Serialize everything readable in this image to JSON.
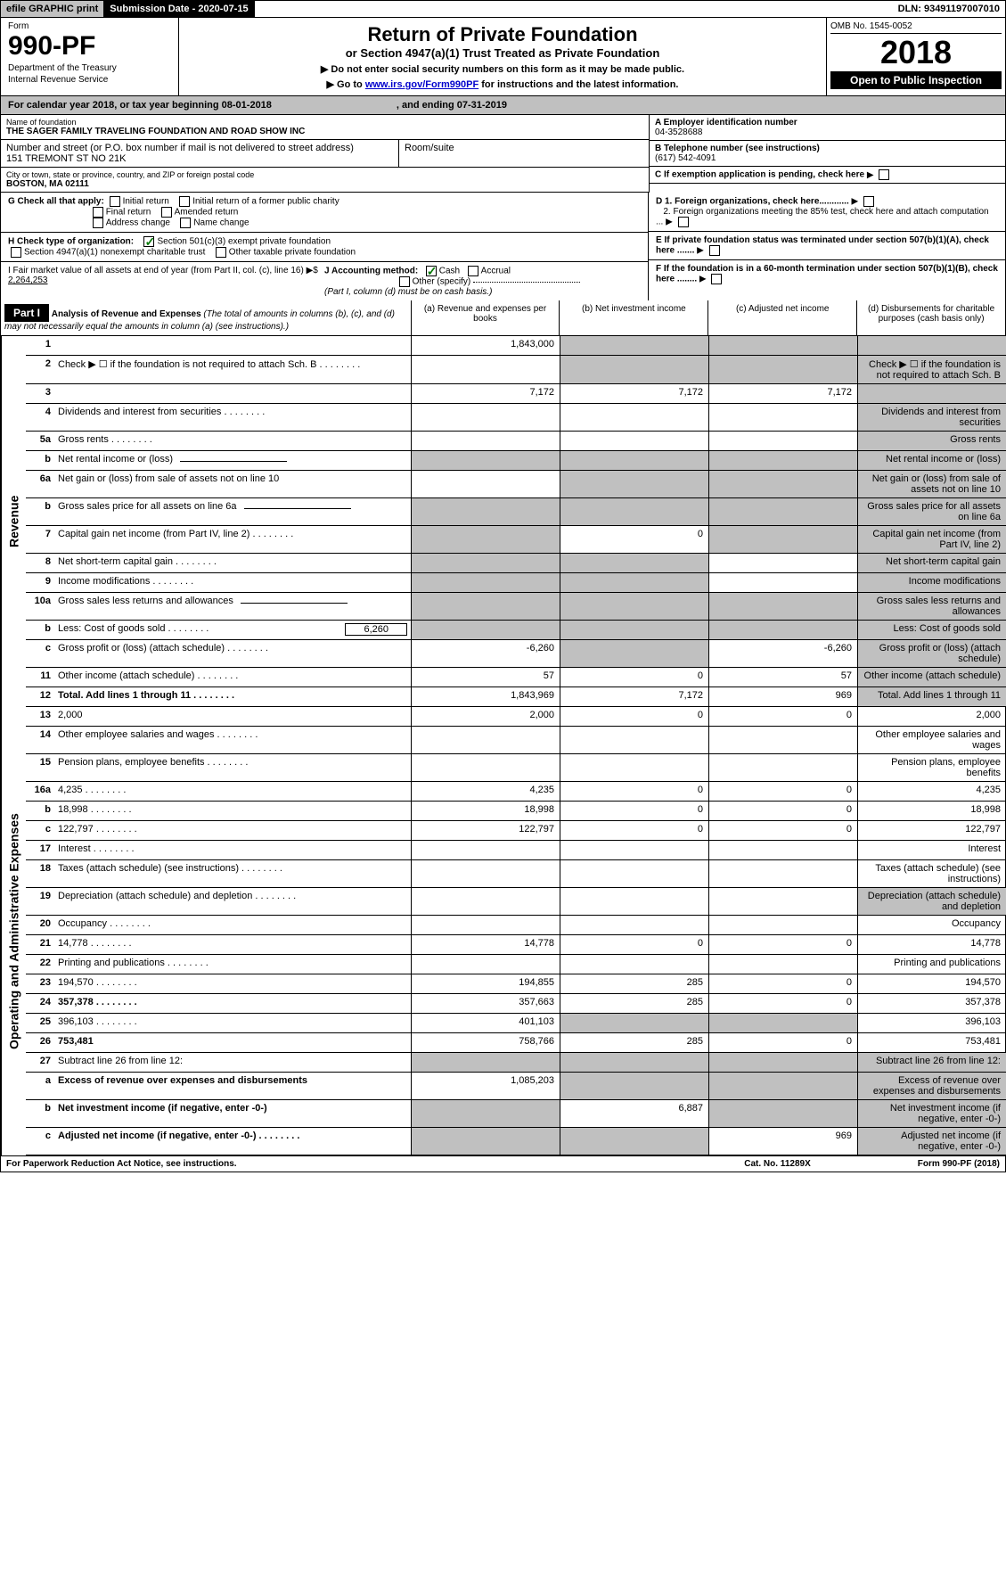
{
  "topbar": {
    "efile": "efile GRAPHIC print",
    "subdate_label": "Submission Date - ",
    "subdate": "2020-07-15",
    "dln_label": "DLN: ",
    "dln": "93491197007010"
  },
  "header": {
    "form_label": "Form",
    "form_num": "990-PF",
    "dept1": "Department of the Treasury",
    "dept2": "Internal Revenue Service",
    "title": "Return of Private Foundation",
    "sub1": "or Section 4947(a)(1) Trust Treated as Private Foundation",
    "sub2a": "▶ Do not enter social security numbers on this form as it may be made public.",
    "sub2b": "▶ Go to ",
    "link": "www.irs.gov/Form990PF",
    "sub2c": " for instructions and the latest information.",
    "omb": "OMB No. 1545-0052",
    "year": "2018",
    "open": "Open to Public Inspection"
  },
  "cal": {
    "l": "For calendar year 2018, or tax year beginning 08-01-2018",
    "r": ", and ending 07-31-2019"
  },
  "info": {
    "name_label": "Name of foundation",
    "name": "THE SAGER FAMILY TRAVELING FOUNDATION AND ROAD SHOW INC",
    "ein_label": "A Employer identification number",
    "ein": "04-3528688",
    "addr_label": "Number and street (or P.O. box number if mail is not delivered to street address)",
    "addr": "151 TREMONT ST NO 21K",
    "room_label": "Room/suite",
    "tel_label": "B Telephone number (see instructions)",
    "tel": "(617) 542-4091",
    "city_label": "City or town, state or province, country, and ZIP or foreign postal code",
    "city": "BOSTON, MA  02111",
    "c_label": "C If exemption application is pending, check here",
    "g_label": "G Check all that apply:",
    "g_opts": [
      "Initial return",
      "Initial return of a former public charity",
      "Final return",
      "Amended return",
      "Address change",
      "Name change"
    ],
    "d1": "D 1. Foreign organizations, check here............",
    "d2": "2. Foreign organizations meeting the 85% test, check here and attach computation ...",
    "h_label": "H Check type of organization:",
    "h1": "Section 501(c)(3) exempt private foundation",
    "h2": "Section 4947(a)(1) nonexempt charitable trust",
    "h3": "Other taxable private foundation",
    "e_label": "E If private foundation status was terminated under section 507(b)(1)(A), check here .......",
    "i_label": "I Fair market value of all assets at end of year (from Part II, col. (c), line 16) ▶$",
    "i_val": "2,264,253",
    "j_label": "J Accounting method:",
    "j_cash": "Cash",
    "j_accrual": "Accrual",
    "j_other": "Other (specify)",
    "j_note": "(Part I, column (d) must be on cash basis.)",
    "f_label": "F If the foundation is in a 60-month termination under section 507(b)(1)(B), check here ........"
  },
  "part1": {
    "title": "Part I",
    "heading": "Analysis of Revenue and Expenses",
    "note": " (The total of amounts in columns (b), (c), and (d) may not necessarily equal the amounts in column (a) (see instructions).)",
    "col_a": "(a)   Revenue and expenses per books",
    "col_b": "(b)   Net investment income",
    "col_c": "(c)   Adjusted net income",
    "col_d": "(d)   Disbursements for charitable purposes (cash basis only)"
  },
  "side_labels": {
    "rev": "Revenue",
    "exp": "Operating and Administrative Expenses"
  },
  "rows": [
    {
      "n": "1",
      "d": "",
      "a": "1,843,000",
      "b": "",
      "c": "",
      "ga": false,
      "gb": true,
      "gc": true,
      "gd": true
    },
    {
      "n": "2",
      "d": "Check ▶ ☐ if the foundation is not required to attach Sch. B",
      "ga": false,
      "gb": true,
      "gc": true,
      "gd": true,
      "dots": true
    },
    {
      "n": "3",
      "d": "",
      "a": "7,172",
      "b": "7,172",
      "c": "7,172",
      "gd": true
    },
    {
      "n": "4",
      "d": "Dividends and interest from securities",
      "dots": true,
      "gd": true
    },
    {
      "n": "5a",
      "d": "Gross rents",
      "dots": true,
      "gd": true
    },
    {
      "n": "b",
      "d": "Net rental income or (loss)",
      "line": true,
      "ga": true,
      "gb": true,
      "gc": true,
      "gd": true
    },
    {
      "n": "6a",
      "d": "Net gain or (loss) from sale of assets not on line 10",
      "gb": true,
      "gc": true,
      "gd": true
    },
    {
      "n": "b",
      "d": "Gross sales price for all assets on line 6a",
      "line": true,
      "ga": true,
      "gb": true,
      "gc": true,
      "gd": true
    },
    {
      "n": "7",
      "d": "Capital gain net income (from Part IV, line 2)",
      "dots": true,
      "b": "0",
      "ga": true,
      "gc": true,
      "gd": true
    },
    {
      "n": "8",
      "d": "Net short-term capital gain",
      "dots": true,
      "ga": true,
      "gb": true,
      "gd": true
    },
    {
      "n": "9",
      "d": "Income modifications",
      "dots": true,
      "ga": true,
      "gb": true,
      "gd": true
    },
    {
      "n": "10a",
      "d": "Gross sales less returns and allowances",
      "line": true,
      "ga": true,
      "gb": true,
      "gc": true,
      "gd": true
    },
    {
      "n": "b",
      "d": "Less: Cost of goods sold",
      "dots": true,
      "inline": "6,260",
      "ga": true,
      "gb": true,
      "gc": true,
      "gd": true
    },
    {
      "n": "c",
      "d": "Gross profit or (loss) (attach schedule)",
      "dots": true,
      "a": "-6,260",
      "c": "-6,260",
      "gb": true,
      "gd": true
    },
    {
      "n": "11",
      "d": "Other income (attach schedule)",
      "dots": true,
      "a": "57",
      "b": "0",
      "c": "57",
      "gd": true
    },
    {
      "n": "12",
      "d": "Total. Add lines 1 through 11",
      "dots": true,
      "bold": true,
      "a": "1,843,969",
      "b": "7,172",
      "c": "969",
      "gd": true
    }
  ],
  "exp_rows": [
    {
      "n": "13",
      "d": "2,000",
      "a": "2,000",
      "b": "0",
      "c": "0"
    },
    {
      "n": "14",
      "d": "Other employee salaries and wages",
      "dots": true
    },
    {
      "n": "15",
      "d": "Pension plans, employee benefits",
      "dots": true
    },
    {
      "n": "16a",
      "d": "4,235",
      "dots": true,
      "a": "4,235",
      "b": "0",
      "c": "0"
    },
    {
      "n": "b",
      "d": "18,998",
      "dots": true,
      "a": "18,998",
      "b": "0",
      "c": "0"
    },
    {
      "n": "c",
      "d": "122,797",
      "dots": true,
      "a": "122,797",
      "b": "0",
      "c": "0"
    },
    {
      "n": "17",
      "d": "Interest",
      "dots": true
    },
    {
      "n": "18",
      "d": "Taxes (attach schedule) (see instructions)",
      "dots": true
    },
    {
      "n": "19",
      "d": "Depreciation (attach schedule) and depletion",
      "dots": true,
      "gd": true
    },
    {
      "n": "20",
      "d": "Occupancy",
      "dots": true
    },
    {
      "n": "21",
      "d": "14,778",
      "dots": true,
      "a": "14,778",
      "b": "0",
      "c": "0"
    },
    {
      "n": "22",
      "d": "Printing and publications",
      "dots": true
    },
    {
      "n": "23",
      "d": "194,570",
      "dots": true,
      "a": "194,855",
      "b": "285",
      "c": "0"
    },
    {
      "n": "24",
      "d": "357,378",
      "dots": true,
      "bold": true,
      "a": "357,663",
      "b": "285",
      "c": "0"
    },
    {
      "n": "25",
      "d": "396,103",
      "dots": true,
      "a": "401,103",
      "gb": true,
      "gc": true
    },
    {
      "n": "26",
      "d": "753,481",
      "bold": true,
      "a": "758,766",
      "b": "285",
      "c": "0"
    },
    {
      "n": "27",
      "d": "Subtract line 26 from line 12:",
      "ga": true,
      "gb": true,
      "gc": true,
      "gd": true
    },
    {
      "n": "a",
      "d": "Excess of revenue over expenses and disbursements",
      "bold": true,
      "a": "1,085,203",
      "gb": true,
      "gc": true,
      "gd": true
    },
    {
      "n": "b",
      "d": "Net investment income (if negative, enter -0-)",
      "bold": true,
      "b": "6,887",
      "ga": true,
      "gc": true,
      "gd": true
    },
    {
      "n": "c",
      "d": "Adjusted net income (if negative, enter -0-)",
      "bold": true,
      "dots": true,
      "c": "969",
      "ga": true,
      "gb": true,
      "gd": true
    }
  ],
  "footer": {
    "l": "For Paperwork Reduction Act Notice, see instructions.",
    "m": "Cat. No. 11289X",
    "r": "Form 990-PF (2018)"
  }
}
